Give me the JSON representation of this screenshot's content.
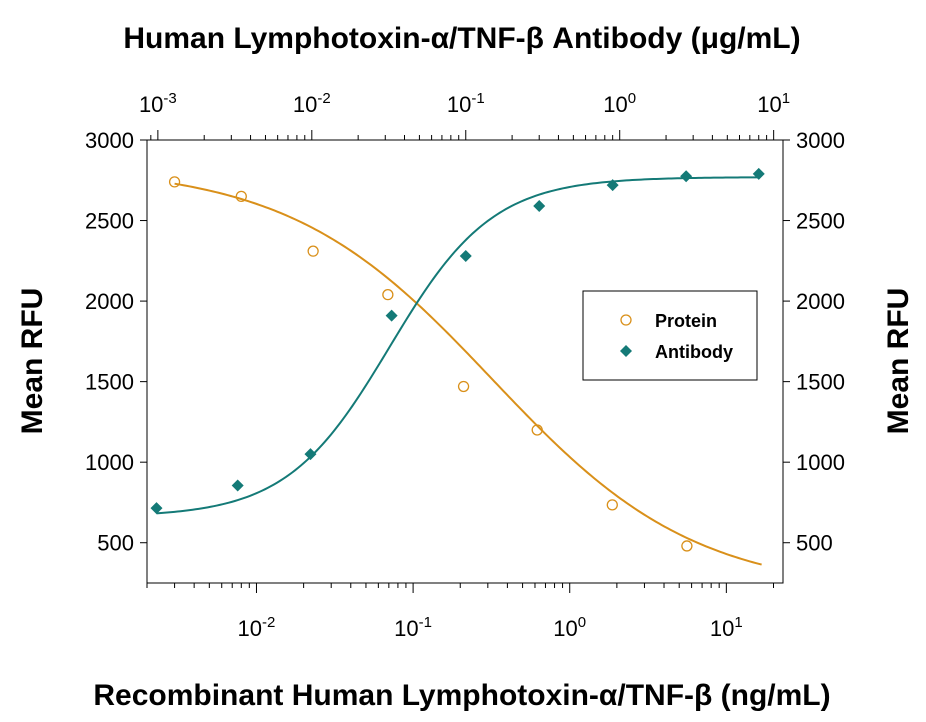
{
  "chart_data": {
    "type": "scatter",
    "title": "Human Lymphotoxin-α/TNF-β Antibody (μg/mL)",
    "xlabel": "Recombinant Human Lymphotoxin-α/TNF-β (ng/mL)",
    "ylabel_left": "Mean RFU",
    "ylabel_right": "Mean RFU",
    "x_scale": "log",
    "xlim": [
      0.002,
      23
    ],
    "ylim": [
      250,
      3000
    ],
    "y_ticks": [
      500,
      1000,
      1500,
      2000,
      2500,
      3000
    ],
    "y_tick_labels": [
      "500",
      "1000",
      "1500",
      "2000",
      "2500",
      "3000"
    ],
    "x_bottom_ticks": [
      {
        "base": "10",
        "exp": "-2",
        "value": 0.01
      },
      {
        "base": "10",
        "exp": "-1",
        "value": 0.1
      },
      {
        "base": "10",
        "exp": "0",
        "value": 1
      },
      {
        "base": "10",
        "exp": "1",
        "value": 10
      }
    ],
    "top_axis_scale": "log",
    "x_top_ticks": [
      {
        "base": "10",
        "exp": "-3",
        "value": 0.001
      },
      {
        "base": "10",
        "exp": "-2",
        "value": 0.01
      },
      {
        "base": "10",
        "exp": "-1",
        "value": 0.1
      },
      {
        "base": "10",
        "exp": "0",
        "value": 1
      },
      {
        "base": "10",
        "exp": "1",
        "value": 10
      }
    ],
    "top_axis_range": [
      0.00085,
      11.5
    ],
    "legend_position": "center-right",
    "series": [
      {
        "name": "Protein",
        "marker": "open-circle",
        "color": "#D9901A",
        "axis": "bottom",
        "x": [
          0.003,
          0.008,
          0.023,
          0.069,
          0.21,
          0.62,
          1.87,
          5.6
        ],
        "y": [
          2740,
          2650,
          2310,
          2040,
          1470,
          1200,
          735,
          480
        ],
        "curve": {
          "model": "4PL",
          "top": 2840,
          "bottom": 190,
          "ec50": 0.32,
          "hill": 0.67,
          "x_range": [
            0.003,
            16.8
          ]
        }
      },
      {
        "name": "Antibody",
        "marker": "filled-diamond",
        "color": "#147A77",
        "axis": "top",
        "x": [
          0.00098,
          0.0033,
          0.0098,
          0.033,
          0.1,
          0.3,
          0.9,
          2.7,
          8.0
        ],
        "y": [
          715,
          855,
          1050,
          1910,
          2280,
          2590,
          2720,
          2775,
          2790
        ],
        "curve": {
          "model": "4PL",
          "top": 2770,
          "bottom": 660,
          "ec50": 0.032,
          "hill": 1.3,
          "x_range": [
            0.00098,
            8.0
          ]
        }
      }
    ]
  }
}
